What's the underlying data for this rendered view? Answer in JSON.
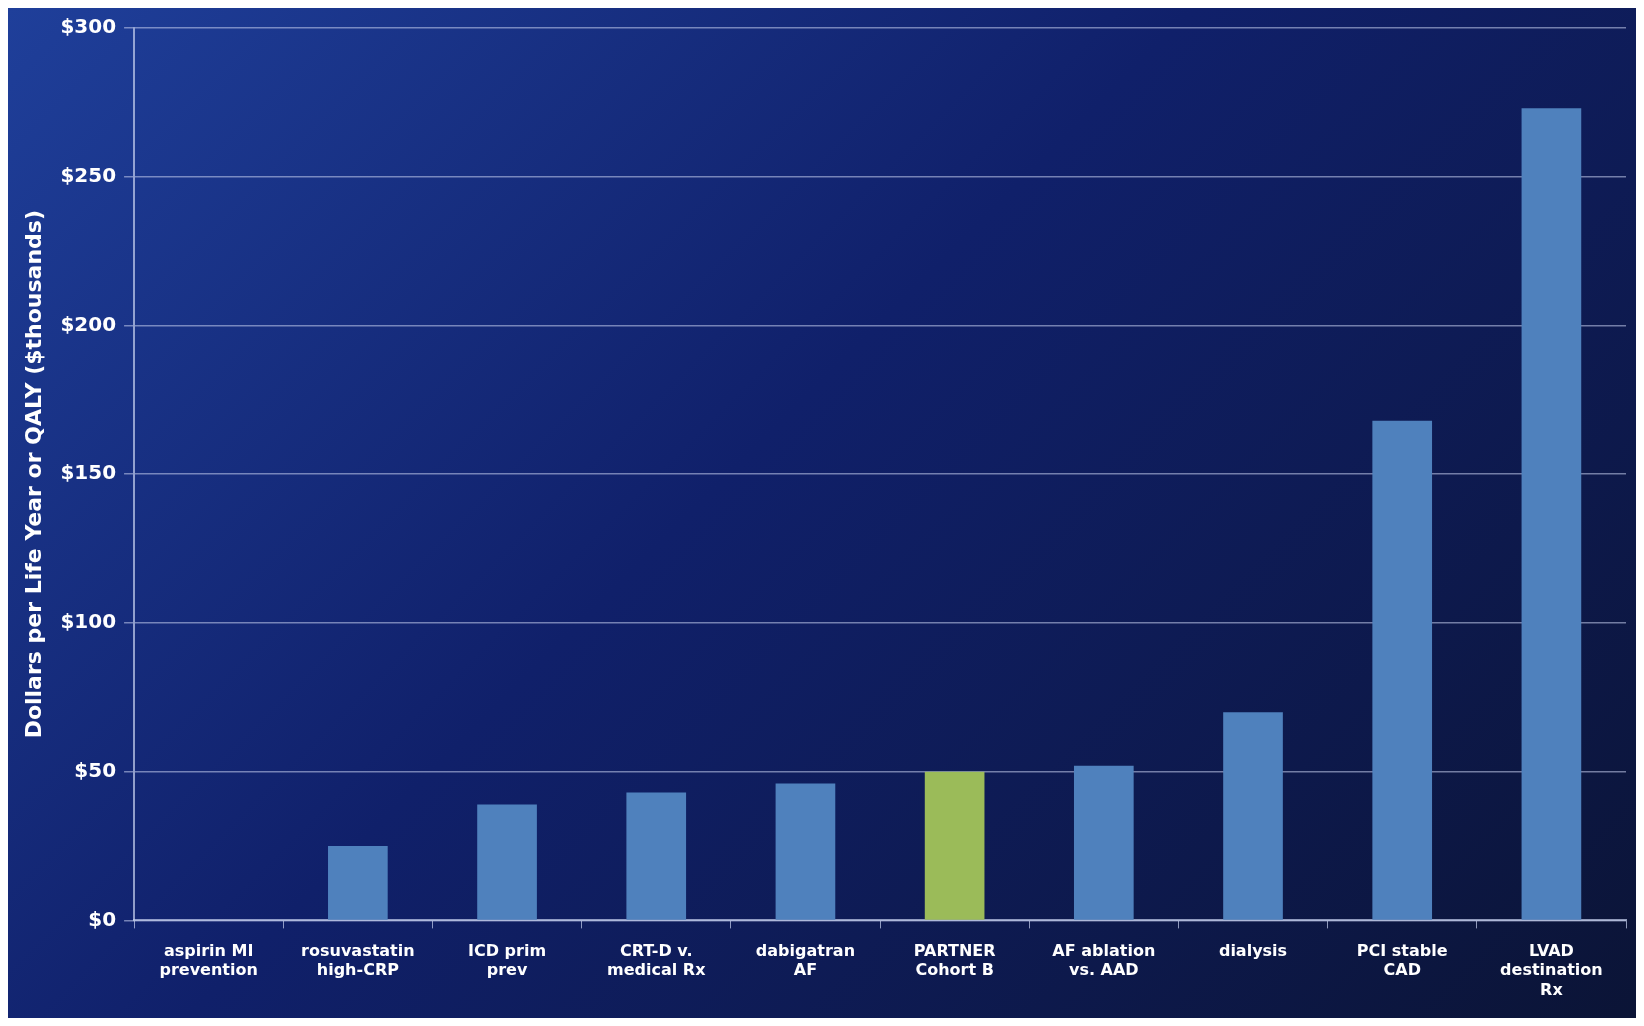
{
  "chart_data": {
    "type": "bar",
    "ylabel": "Dollars per Life Year or QALY ($thousands)",
    "categories": [
      "aspirin MI\nprevention",
      "rosuvastatin\nhigh-CRP",
      "ICD prim\nprev",
      "CRT-D v.\nmedical Rx",
      "dabigatran\nAF",
      "PARTNER\nCohort B",
      "AF ablation\nvs. AAD",
      "dialysis",
      "PCI stable\nCAD",
      "LVAD\ndestination\nRx"
    ],
    "values": [
      0,
      25,
      39,
      43,
      46,
      50,
      52,
      70,
      168,
      273
    ],
    "colors": [
      "#4f81bd",
      "#4f81bd",
      "#4f81bd",
      "#4f81bd",
      "#4f81bd",
      "#9bbb59",
      "#4f81bd",
      "#4f81bd",
      "#4f81bd",
      "#4f81bd"
    ],
    "ylim": [
      0,
      300
    ],
    "yticks": [
      {
        "value": 0,
        "label": "$0"
      },
      {
        "value": 50,
        "label": "$50"
      },
      {
        "value": 100,
        "label": "$100"
      },
      {
        "value": 150,
        "label": "$150"
      },
      {
        "value": 200,
        "label": "$200"
      },
      {
        "value": 250,
        "label": "$250"
      },
      {
        "value": 300,
        "label": "$300"
      }
    ],
    "grid": "y",
    "legend": false
  }
}
